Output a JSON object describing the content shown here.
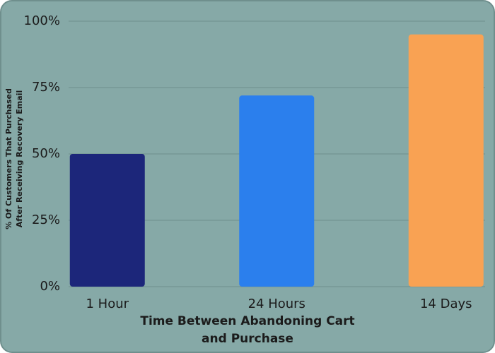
{
  "chart_data": {
    "type": "bar",
    "categories": [
      "1 Hour",
      "24 Hours",
      "14 Days"
    ],
    "values": [
      50,
      72,
      95
    ],
    "colors": [
      "#1c267a",
      "#2b7fed",
      "#f9a253"
    ],
    "ylim": [
      0,
      100
    ],
    "yticks": [
      {
        "value": 0,
        "label": "0%"
      },
      {
        "value": 25,
        "label": "25%"
      },
      {
        "value": 50,
        "label": "50%"
      },
      {
        "value": 75,
        "label": "75%"
      },
      {
        "value": 100,
        "label": "100%"
      }
    ],
    "grid": true,
    "xlabel": [
      "Time Between Abandoning Cart",
      "and Purchase"
    ],
    "ylabel": [
      "% Of Customers That Purchased",
      "After Receiving Recovery Email"
    ]
  }
}
